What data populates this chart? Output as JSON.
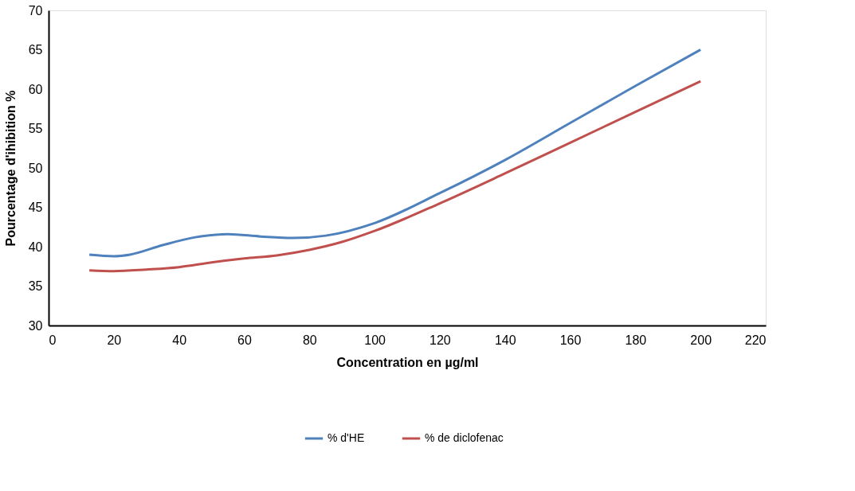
{
  "chart_data": {
    "type": "line",
    "xlabel": "Concentration en µg/ml",
    "ylabel": "Pourcentage d'ihibition %",
    "xlim": [
      0,
      220
    ],
    "xticks": [
      0,
      20,
      40,
      60,
      80,
      100,
      120,
      140,
      160,
      180,
      200,
      220
    ],
    "ylim": [
      30,
      70
    ],
    "yticks": [
      30,
      35,
      40,
      45,
      50,
      55,
      60,
      65,
      70
    ],
    "grid": false,
    "legend": "bottom",
    "marker": "none",
    "line_style": "solid",
    "series": [
      {
        "name": "% d'HE",
        "color": "#4f81bd",
        "x": [
          12.5,
          20,
          25,
          35,
          45,
          55,
          65,
          75,
          85,
          100,
          120,
          140,
          160,
          180,
          200
        ],
        "values": [
          39,
          38.8,
          39,
          40.2,
          41.2,
          41.6,
          41.3,
          41.1,
          41.4,
          43,
          46.8,
          51,
          55.7,
          60.4,
          65
        ]
      },
      {
        "name": "% de diclofenac",
        "color": "#c0504d",
        "x": [
          12.5,
          20,
          30,
          40,
          50,
          60,
          70,
          80,
          90,
          100,
          120,
          140,
          160,
          180,
          200
        ],
        "values": [
          37,
          36.9,
          37.1,
          37.4,
          38,
          38.5,
          38.9,
          39.6,
          40.6,
          42,
          45.5,
          49.3,
          53.2,
          57.1,
          61
        ]
      }
    ]
  }
}
